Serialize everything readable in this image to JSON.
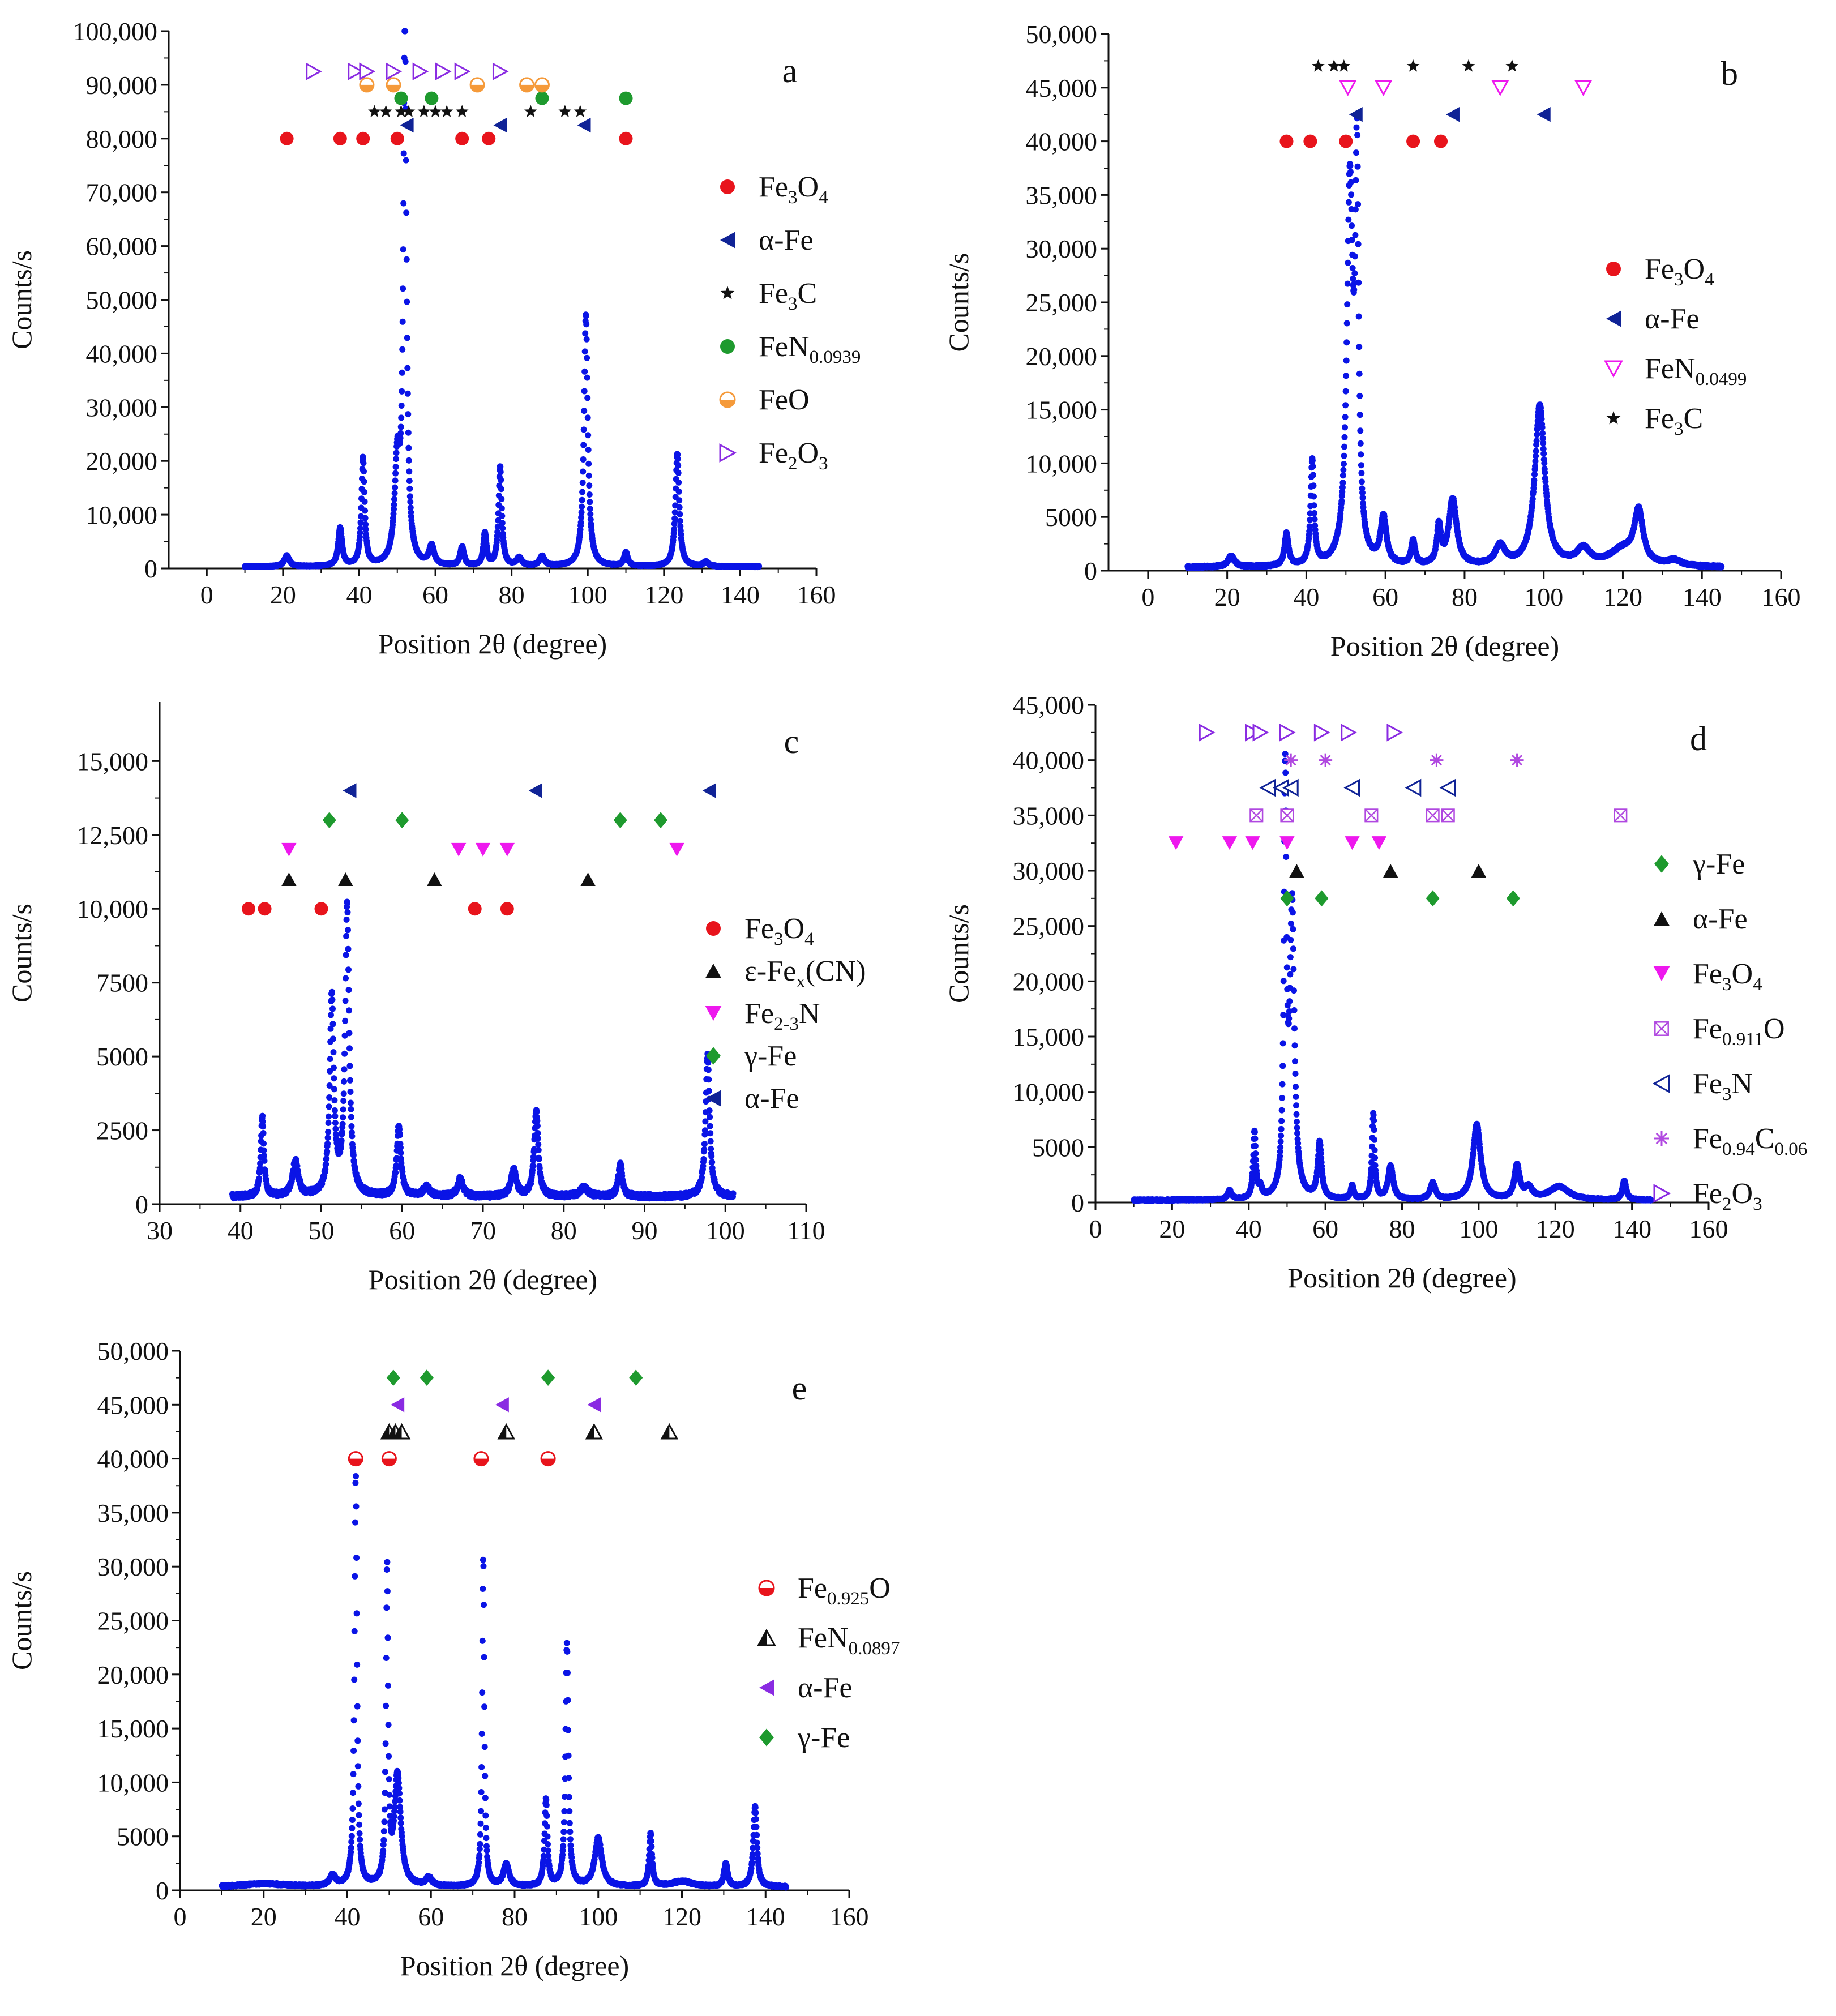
{
  "colors": {
    "data": "#0a14e6",
    "red": "#e8141c",
    "navy": "#102396",
    "black": "#111111",
    "green": "#1e9a2e",
    "orange": "#f59a3a",
    "violet": "#8a2be2",
    "magenta": "#ee18ee",
    "purple": "#b048e0"
  },
  "chart_data": [
    {
      "id": "a",
      "type": "scatter",
      "letter": "a",
      "xlabel": "Position 2θ (degree)",
      "ylabel": "Counts/s",
      "xlim": [
        -10,
        160
      ],
      "ylim": [
        0,
        100000
      ],
      "xticks": [
        0,
        20,
        40,
        60,
        80,
        100,
        120,
        140,
        160
      ],
      "yticks": [
        0,
        10000,
        20000,
        30000,
        40000,
        50000,
        60000,
        70000,
        80000,
        90000,
        100000
      ],
      "ytick_labels": [
        "0",
        "10,000",
        "20,000",
        "30,000",
        "40,000",
        "50,000",
        "60,000",
        "70,000",
        "80,000",
        "90,000",
        "100,000"
      ],
      "baseline": 300,
      "x_start": 10,
      "x_end": 145,
      "peaks": [
        [
          21,
          2000,
          0.8
        ],
        [
          35,
          7000,
          0.6
        ],
        [
          41,
          20000,
          0.5
        ],
        [
          50,
          18000,
          0.8
        ],
        [
          52,
          100000,
          0.5
        ],
        [
          59,
          3500,
          0.8
        ],
        [
          67,
          3500,
          0.6
        ],
        [
          73,
          6000,
          0.5
        ],
        [
          77,
          18500,
          0.5
        ],
        [
          82,
          1500,
          0.8
        ],
        [
          88,
          1800,
          0.8
        ],
        [
          99.5,
          47000,
          0.6
        ],
        [
          110,
          2500,
          0.6
        ],
        [
          123.5,
          21000,
          0.6
        ],
        [
          131,
          800,
          0.8
        ]
      ],
      "legend": [
        {
          "label": "Fe",
          "sub": "3",
          "label2": "O",
          "sub2": "4",
          "marker": "circle",
          "color": "red"
        },
        {
          "label": "α-Fe",
          "marker": "tri-left",
          "color": "navy"
        },
        {
          "label": "Fe",
          "sub": "3",
          "label2": "C",
          "marker": "star",
          "color": "black"
        },
        {
          "label": "FeN",
          "sub": "0.0939",
          "marker": "circle",
          "color": "green"
        },
        {
          "label": "FeO",
          "marker": "half-circle",
          "color": "orange"
        },
        {
          "label": "Fe",
          "sub": "2",
          "label2": "O",
          "sub2": "3",
          "marker": "tri-right-open",
          "color": "violet"
        }
      ],
      "annotations": [
        {
          "marker": "circle",
          "color": "red",
          "y": 80000,
          "x": [
            21,
            35,
            41,
            50,
            67,
            74,
            110
          ]
        },
        {
          "marker": "tri-left",
          "color": "navy",
          "y": 82500,
          "x": [
            52.5,
            77,
            99
          ]
        },
        {
          "marker": "star",
          "color": "black",
          "y": 85000,
          "x": [
            44,
            47,
            51,
            53,
            57,
            60,
            63,
            67,
            85,
            94,
            98
          ]
        },
        {
          "marker": "circle",
          "color": "green",
          "y": 87500,
          "x": [
            51,
            59,
            88,
            110
          ]
        },
        {
          "marker": "half-circle",
          "color": "orange",
          "y": 90000,
          "x": [
            42,
            49,
            71,
            84,
            88
          ]
        },
        {
          "marker": "tri-right-open",
          "color": "violet",
          "y": 92500,
          "x": [
            28,
            39,
            42,
            49,
            56,
            62,
            67,
            77
          ]
        }
      ]
    },
    {
      "id": "b",
      "type": "scatter",
      "letter": "b",
      "xlabel": "Position 2θ (degree)",
      "ylabel": "Counts/s",
      "xlim": [
        -10,
        160
      ],
      "ylim": [
        0,
        50000
      ],
      "xticks": [
        0,
        20,
        40,
        60,
        80,
        100,
        120,
        140,
        160
      ],
      "yticks": [
        0,
        5000,
        10000,
        15000,
        20000,
        25000,
        30000,
        35000,
        40000,
        45000,
        50000
      ],
      "ytick_labels": [
        "0",
        "5000",
        "10,000",
        "15,000",
        "20,000",
        "25,000",
        "30,000",
        "35,000",
        "40,000",
        "45,000",
        "50,000"
      ],
      "baseline": 300,
      "x_start": 10,
      "x_end": 145,
      "peaks": [
        [
          21,
          1000,
          1.0
        ],
        [
          35,
          3000,
          0.6
        ],
        [
          41.5,
          9700,
          0.5
        ],
        [
          51,
          35000,
          0.9
        ],
        [
          52.8,
          35000,
          0.5
        ],
        [
          59.5,
          4300,
          0.9
        ],
        [
          67,
          2200,
          0.6
        ],
        [
          73.5,
          3500,
          0.6
        ],
        [
          77,
          6200,
          1.2
        ],
        [
          89,
          1800,
          1.5
        ],
        [
          99,
          15000,
          1.5
        ],
        [
          110,
          1500,
          2
        ],
        [
          120,
          1500,
          4
        ],
        [
          124,
          4800,
          1.3
        ],
        [
          133,
          500,
          2
        ]
      ],
      "legend": [
        {
          "label": "Fe",
          "sub": "3",
          "label2": "O",
          "sub2": "4",
          "marker": "circle",
          "color": "red"
        },
        {
          "label": "α-Fe",
          "marker": "tri-left",
          "color": "navy"
        },
        {
          "label": "FeN",
          "sub": "0.0499",
          "marker": "tri-down-open",
          "color": "magenta"
        },
        {
          "label": "Fe",
          "sub": "3",
          "label2": "C",
          "marker": "star",
          "color": "black"
        }
      ],
      "annotations": [
        {
          "marker": "circle",
          "color": "red",
          "y": 40000,
          "x": [
            35,
            41,
            50,
            67,
            74
          ]
        },
        {
          "marker": "tri-left",
          "color": "navy",
          "y": 42500,
          "x": [
            52.5,
            77,
            100
          ]
        },
        {
          "marker": "tri-down-open",
          "color": "magenta",
          "y": 45000,
          "x": [
            50.5,
            59.5,
            89,
            110
          ]
        },
        {
          "marker": "star",
          "color": "black",
          "y": 47000,
          "x": [
            43,
            47,
            49.5,
            67,
            81,
            92
          ]
        }
      ]
    },
    {
      "id": "c",
      "type": "scatter",
      "letter": "c",
      "xlabel": "Position 2θ (degree)",
      "ylabel": "Counts/s",
      "xlim": [
        30,
        110
      ],
      "ylim": [
        0,
        17000
      ],
      "xticks": [
        30,
        40,
        50,
        60,
        70,
        80,
        90,
        100,
        110
      ],
      "yticks": [
        0,
        2500,
        5000,
        7500,
        10000,
        12500,
        15000
      ],
      "ytick_labels": [
        "0",
        "2500",
        "5000",
        "7500",
        "10,000",
        "12,500",
        "15,000"
      ],
      "baseline": 250,
      "x_start": 39,
      "x_end": 101,
      "peaks": [
        [
          42.7,
          2700,
          0.22
        ],
        [
          46.8,
          1200,
          0.4
        ],
        [
          51.3,
          6700,
          0.3
        ],
        [
          53.2,
          9800,
          0.3
        ],
        [
          59.6,
          2400,
          0.3
        ],
        [
          63,
          300,
          0.5
        ],
        [
          67.2,
          600,
          0.4
        ],
        [
          73.8,
          900,
          0.4
        ],
        [
          76.6,
          2900,
          0.3
        ],
        [
          82.5,
          300,
          0.6
        ],
        [
          87,
          1100,
          0.3
        ],
        [
          97.8,
          4800,
          0.3
        ]
      ],
      "legend": [
        {
          "label": "Fe",
          "sub": "3",
          "label2": "O",
          "sub2": "4",
          "marker": "circle",
          "color": "red"
        },
        {
          "label": "ε-Fe",
          "sub": "x",
          "label2": "(CN)",
          "marker": "tri-up",
          "color": "black"
        },
        {
          "label": "Fe",
          "sub": "2-3",
          "label2": "N",
          "marker": "tri-down",
          "color": "magenta"
        },
        {
          "label": "γ-Fe",
          "marker": "diamond",
          "color": "green"
        },
        {
          "label": "α-Fe",
          "marker": "tri-left",
          "color": "navy"
        }
      ],
      "annotations": [
        {
          "marker": "circle",
          "color": "red",
          "y": 10000,
          "x": [
            41,
            43,
            50,
            69,
            73
          ]
        },
        {
          "marker": "tri-up",
          "color": "black",
          "y": 11000,
          "x": [
            46,
            53,
            64,
            83
          ]
        },
        {
          "marker": "tri-down",
          "color": "magenta",
          "y": 12000,
          "x": [
            46,
            67,
            70,
            73,
            94
          ]
        },
        {
          "marker": "diamond",
          "color": "green",
          "y": 13000,
          "x": [
            51,
            60,
            87,
            92
          ]
        },
        {
          "marker": "tri-left",
          "color": "navy",
          "y": 14000,
          "x": [
            53.5,
            76.5,
            98
          ]
        }
      ]
    },
    {
      "id": "d",
      "type": "scatter",
      "letter": "d",
      "xlabel": "Position 2θ (degree)",
      "ylabel": "Counts/s",
      "xlim": [
        0,
        160
      ],
      "ylim": [
        0,
        45000
      ],
      "xticks": [
        0,
        20,
        40,
        60,
        80,
        100,
        120,
        140,
        160
      ],
      "yticks": [
        0,
        5000,
        10000,
        15000,
        20000,
        25000,
        30000,
        35000,
        40000,
        45000
      ],
      "ytick_labels": [
        "0",
        "5000",
        "10,000",
        "15,000",
        "20,000",
        "25,000",
        "30,000",
        "35,000",
        "40,000",
        "45,000"
      ],
      "baseline": 200,
      "x_start": 10,
      "x_end": 145,
      "peaks": [
        [
          35,
          800,
          0.6
        ],
        [
          41.5,
          6000,
          0.4
        ],
        [
          43,
          900,
          0.5
        ],
        [
          49.5,
          37000,
          0.4
        ],
        [
          51.3,
          26000,
          0.7
        ],
        [
          58.5,
          5000,
          0.6
        ],
        [
          67,
          1200,
          0.5
        ],
        [
          72.5,
          7700,
          0.4
        ],
        [
          77,
          3000,
          0.8
        ],
        [
          88,
          1500,
          0.8
        ],
        [
          99.5,
          6800,
          1.2
        ],
        [
          110,
          3000,
          0.8
        ],
        [
          113,
          1000,
          1.2
        ],
        [
          121,
          1200,
          3
        ],
        [
          138,
          1700,
          0.6
        ]
      ],
      "legend": [
        {
          "label": "γ-Fe",
          "marker": "diamond",
          "color": "green"
        },
        {
          "label": "α-Fe",
          "marker": "tri-up",
          "color": "black"
        },
        {
          "label": "Fe",
          "sub": "3",
          "label2": "O",
          "sub2": "4",
          "marker": "tri-down",
          "color": "magenta"
        },
        {
          "label": "Fe",
          "sub": "0.911",
          "label2": "O",
          "marker": "box-x",
          "color": "purple"
        },
        {
          "label": "Fe",
          "sub": "3",
          "label2": "N",
          "marker": "tri-left-open",
          "color": "navy"
        },
        {
          "label": "Fe",
          "sub": "0.94",
          "label2": "C",
          "sub2": "0.06",
          "marker": "asterisk",
          "color": "purple"
        },
        {
          "label": "Fe",
          "sub": "2",
          "label2": "O",
          "sub2": "3",
          "marker": "tri-right-open",
          "color": "violet"
        }
      ],
      "annotations": [
        {
          "marker": "diamond",
          "color": "green",
          "y": 27500,
          "x": [
            50,
            59,
            88,
            109
          ]
        },
        {
          "marker": "tri-up",
          "color": "black",
          "y": 30000,
          "x": [
            52.5,
            77,
            100
          ]
        },
        {
          "marker": "tri-down",
          "color": "magenta",
          "y": 32500,
          "x": [
            21,
            35,
            41,
            50,
            67,
            74
          ]
        },
        {
          "marker": "box-x",
          "color": "purple",
          "y": 35000,
          "x": [
            42,
            50,
            72,
            88,
            92,
            137
          ]
        },
        {
          "marker": "tri-left-open",
          "color": "navy",
          "y": 37500,
          "x": [
            45,
            48.5,
            51,
            67,
            83,
            92
          ]
        },
        {
          "marker": "asterisk",
          "color": "purple",
          "y": 40000,
          "x": [
            51,
            60,
            89,
            110
          ]
        },
        {
          "marker": "tri-right-open",
          "color": "violet",
          "y": 42500,
          "x": [
            29,
            41,
            43,
            50,
            59,
            66,
            78
          ]
        }
      ]
    },
    {
      "id": "e",
      "type": "scatter",
      "letter": "e",
      "xlabel": "Position 2θ (degree)",
      "ylabel": "Counts/s",
      "xlim": [
        0,
        160
      ],
      "ylim": [
        0,
        50000
      ],
      "xticks": [
        0,
        20,
        40,
        60,
        80,
        100,
        120,
        140,
        160
      ],
      "yticks": [
        0,
        5000,
        10000,
        15000,
        20000,
        25000,
        30000,
        35000,
        40000,
        45000,
        50000
      ],
      "ytick_labels": [
        "0",
        "5000",
        "10,000",
        "15,000",
        "20,000",
        "25,000",
        "30,000",
        "35,000",
        "40,000",
        "45,000",
        "50,000"
      ],
      "baseline": 300,
      "x_start": 10,
      "x_end": 145,
      "peaks": [
        [
          20,
          300,
          6
        ],
        [
          36.5,
          1000,
          0.8
        ],
        [
          42,
          38000,
          0.35
        ],
        [
          49.5,
          29000,
          0.3
        ],
        [
          52,
          10300,
          0.9
        ],
        [
          59.5,
          800,
          0.8
        ],
        [
          72.5,
          30500,
          0.3
        ],
        [
          78,
          2000,
          0.8
        ],
        [
          87.5,
          8000,
          0.4
        ],
        [
          92.5,
          22500,
          0.4
        ],
        [
          100,
          4500,
          1.0
        ],
        [
          112.5,
          5000,
          0.4
        ],
        [
          120,
          500,
          3
        ],
        [
          130.5,
          2200,
          0.5
        ],
        [
          137.5,
          7500,
          0.5
        ]
      ],
      "legend": [
        {
          "label": "Fe",
          "sub": "0.925",
          "label2": "O",
          "marker": "half-circle",
          "color": "red"
        },
        {
          "label": "FeN",
          "sub": "0.0897",
          "marker": "tri-up-half",
          "color": "black"
        },
        {
          "label": "α-Fe",
          "marker": "tri-left",
          "color": "violet"
        },
        {
          "label": "γ-Fe",
          "marker": "diamond",
          "color": "green"
        }
      ],
      "annotations": [
        {
          "marker": "half-circle",
          "color": "red",
          "y": 40000,
          "x": [
            42,
            50,
            72,
            88
          ]
        },
        {
          "marker": "tri-up-half",
          "color": "black",
          "y": 42500,
          "x": [
            50,
            51.5,
            53,
            78,
            99,
            117
          ]
        },
        {
          "marker": "tri-left",
          "color": "violet",
          "y": 45000,
          "x": [
            52,
            77,
            99
          ]
        },
        {
          "marker": "diamond",
          "color": "green",
          "y": 47500,
          "x": [
            51,
            59,
            88,
            109
          ]
        }
      ]
    }
  ]
}
